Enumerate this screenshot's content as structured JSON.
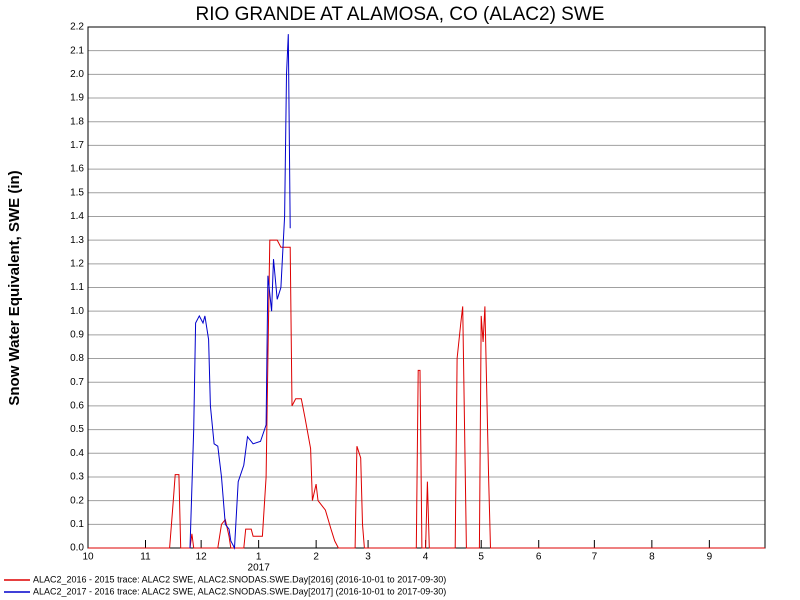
{
  "chart_data": {
    "type": "line",
    "title": "RIO GRANDE AT ALAMOSA, CO (ALAC2) SWE",
    "y_label": "Snow Water Equivalent, SWE (in)",
    "x_annotation": "2017",
    "xlim": [
      0,
      365
    ],
    "xticks": [
      {
        "value": 0,
        "label": "10"
      },
      {
        "value": 31,
        "label": "11"
      },
      {
        "value": 61,
        "label": "12"
      },
      {
        "value": 92,
        "label": "1"
      },
      {
        "value": 123,
        "label": "2"
      },
      {
        "value": 151,
        "label": "3"
      },
      {
        "value": 182,
        "label": "4"
      },
      {
        "value": 212,
        "label": "5"
      },
      {
        "value": 243,
        "label": "6"
      },
      {
        "value": 273,
        "label": "7"
      },
      {
        "value": 304,
        "label": "8"
      },
      {
        "value": 335,
        "label": "9"
      }
    ],
    "ylim": [
      0,
      2.2
    ],
    "yticks": [
      {
        "value": 0,
        "label": "0.0"
      },
      0.1,
      0.2,
      0.3,
      0.4,
      0.5,
      0.6,
      0.7,
      0.8,
      0.9,
      {
        "value": 1,
        "label": "1.0"
      },
      1.1,
      1.2,
      1.3,
      1.4,
      1.5,
      1.6,
      1.7,
      1.8,
      1.9,
      {
        "value": 2,
        "label": "2.0"
      },
      2.1,
      2.2
    ],
    "grid": true,
    "series": [
      {
        "name": "ALAC2_2016 - 2015 trace: ALAC2 SWE, ALAC2.SNODAS.SWE.Day[2016] (2016-10-01 to 2017-09-30)",
        "color": "#dd0000",
        "x": [
          0,
          44,
          46,
          47,
          49,
          50,
          55,
          56,
          57,
          70,
          72,
          74,
          76,
          77,
          84,
          85,
          88,
          89,
          94,
          96,
          97,
          98,
          102,
          104,
          109,
          110,
          112,
          115,
          117,
          120,
          121,
          123,
          124,
          128,
          131,
          133,
          135,
          144,
          145,
          147,
          148,
          149,
          177,
          178,
          179,
          180,
          182,
          183,
          184,
          198,
          199,
          201,
          202,
          204,
          211,
          212,
          213,
          214,
          216,
          217,
          365
        ],
        "values": [
          0,
          0,
          0.2,
          0.31,
          0.31,
          0,
          0,
          0.06,
          0,
          0,
          0.1,
          0.12,
          0.05,
          0,
          0,
          0.08,
          0.08,
          0.05,
          0.05,
          0.3,
          0.8,
          1.3,
          1.3,
          1.27,
          1.27,
          0.6,
          0.63,
          0.63,
          0.55,
          0.42,
          0.2,
          0.27,
          0.2,
          0.16,
          0.08,
          0.03,
          0,
          0,
          0.43,
          0.38,
          0.1,
          0,
          0,
          0.75,
          0.75,
          0,
          0,
          0.28,
          0,
          0,
          0.8,
          0.95,
          1.02,
          0,
          0,
          0.98,
          0.87,
          1.02,
          0.3,
          0,
          0
        ]
      },
      {
        "name": "ALAC2_2017 - 2016 trace: ALAC2 SWE, ALAC2.SNODAS.SWE.Day[2017] (2016-10-01 to 2017-09-30)",
        "color": "#0000cc",
        "x": [
          55,
          57,
          58,
          60,
          62,
          63,
          65,
          66,
          68,
          70,
          72,
          74,
          76,
          77,
          79,
          81,
          84,
          86,
          89,
          93,
          96,
          97,
          99,
          100,
          102,
          104,
          106,
          107,
          108,
          109
        ],
        "values": [
          0,
          0.5,
          0.95,
          0.98,
          0.95,
          0.98,
          0.88,
          0.6,
          0.44,
          0.43,
          0.3,
          0.1,
          0.08,
          0.03,
          0,
          0.28,
          0.35,
          0.47,
          0.44,
          0.45,
          0.52,
          1.15,
          1.0,
          1.22,
          1.05,
          1.1,
          1.4,
          2.0,
          2.17,
          1.35
        ]
      }
    ]
  }
}
